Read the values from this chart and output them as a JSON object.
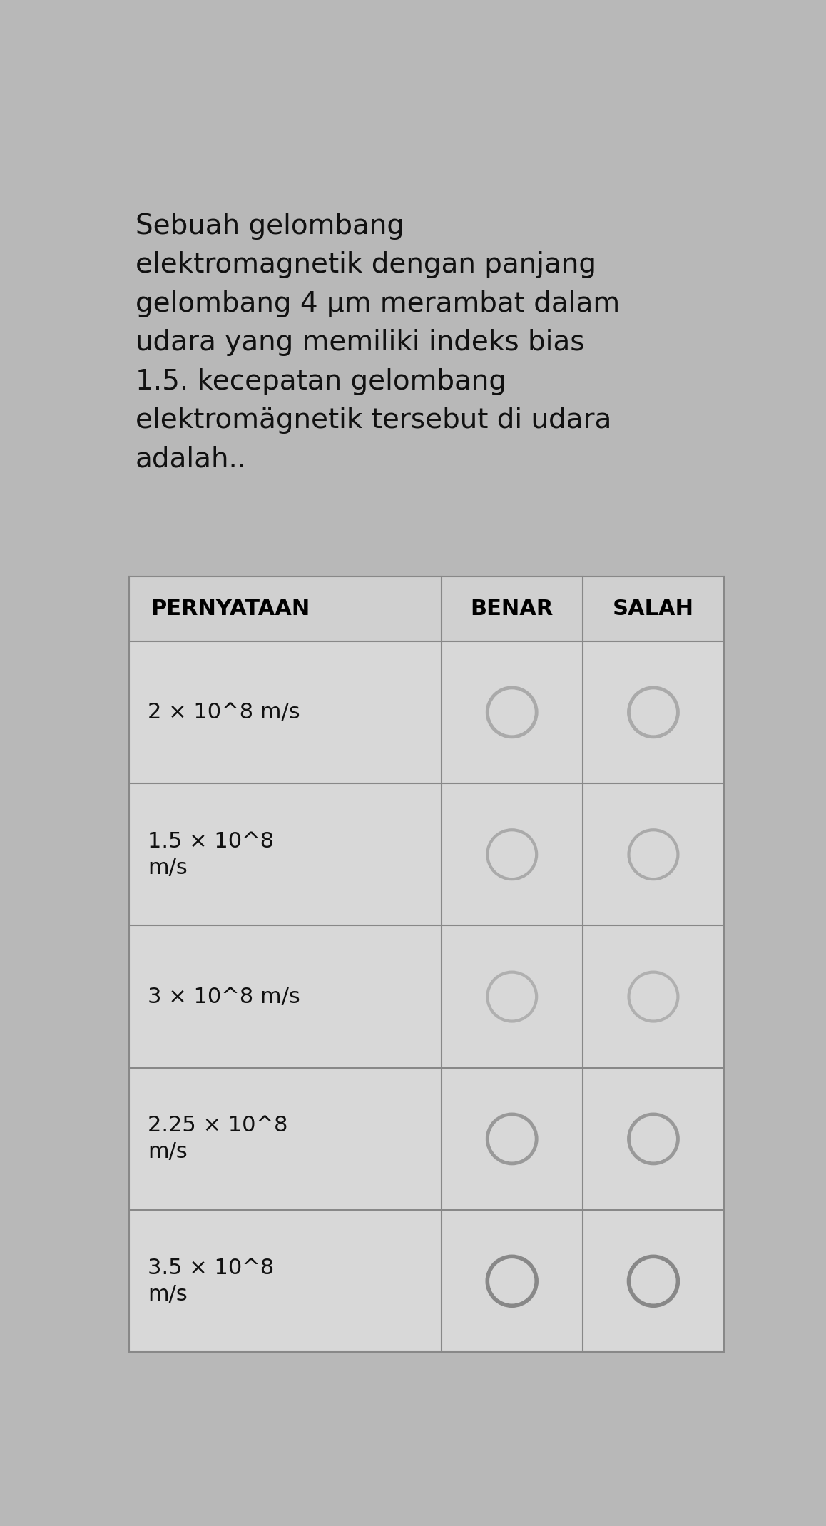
{
  "question_text": "Sebuah gelombang\nelektromagnetik dengan panjang\ngelombang 4 μm merambat dalam\nudara yang memiliki indeks bias\n1.5. kecepatan gelombang\nelektromägnetik tersebut di udara\nadalah..",
  "col_headers": [
    "PERNYATAAN",
    "BENAR",
    "SALAH"
  ],
  "rows": [
    "2 × 10^8 m/s",
    "1.5 × 10^8\nm/s",
    "3 × 10^8 m/s",
    "2.25 × 10^8\nm/s",
    "3.5 × 10^8\nm/s"
  ],
  "bg_color": "#b8b8b8",
  "header_bg": "#d0d0d0",
  "cell_bg": "#d8d8d8",
  "text_color": "#111111",
  "header_text_color": "#000000",
  "circle_colors": [
    "#aaaaaa",
    "#aaaaaa",
    "#b0b0b0",
    "#999999",
    "#888888"
  ],
  "circle_lws": [
    3.5,
    3.0,
    3.0,
    3.5,
    4.0
  ],
  "table_border_color": "#888888",
  "question_fontsize": 28,
  "header_fontsize": 22,
  "row_fontsize": 22
}
